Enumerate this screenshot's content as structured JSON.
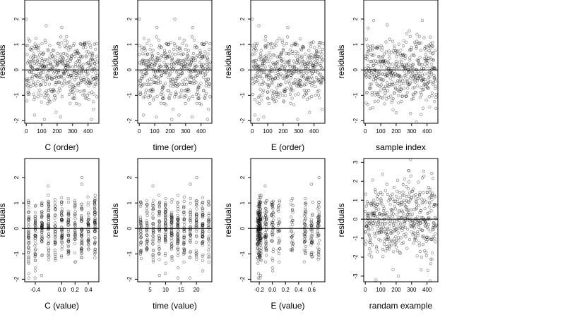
{
  "chart_data": [
    {
      "type": "scatter",
      "xlabel": "C (order)",
      "ylabel": "residuals",
      "xticks": [
        "0",
        "100",
        "200",
        "300",
        "400"
      ],
      "yticks": [
        "-2",
        "-1",
        "0",
        "1",
        "2"
      ],
      "xlim": [
        -10,
        470
      ],
      "ylim": [
        -2.1,
        2.75
      ],
      "x_kind": "index",
      "n_points": 460,
      "y_stats": {
        "spread": 0.72
      },
      "reference_line": 0
    },
    {
      "type": "scatter",
      "xlabel": "time (order)",
      "ylabel": "residuals",
      "xticks": [
        "0",
        "100",
        "200",
        "300",
        "400"
      ],
      "yticks": [
        "-2",
        "-1",
        "0",
        "1",
        "2"
      ],
      "xlim": [
        -10,
        470
      ],
      "ylim": [
        -2.1,
        2.75
      ],
      "x_kind": "index",
      "n_points": 460,
      "y_stats": {
        "spread": 0.72
      },
      "reference_line": 0
    },
    {
      "type": "scatter",
      "xlabel": "E (order)",
      "ylabel": "residuals",
      "xticks": [
        "0",
        "100",
        "200",
        "300",
        "400"
      ],
      "yticks": [
        "-2",
        "-1",
        "0",
        "1",
        "2"
      ],
      "xlim": [
        -10,
        470
      ],
      "ylim": [
        -2.1,
        2.75
      ],
      "x_kind": "index",
      "n_points": 460,
      "y_stats": {
        "spread": 0.72
      },
      "reference_line": 0
    },
    {
      "type": "scatter",
      "xlabel": "sample index",
      "ylabel": "residuals",
      "xticks": [
        "0",
        "100",
        "200",
        "300",
        "400"
      ],
      "yticks": [
        "-2",
        "-1",
        "0",
        "1",
        "2"
      ],
      "xlim": [
        -10,
        470
      ],
      "ylim": [
        -2.1,
        2.75
      ],
      "x_kind": "index",
      "n_points": 460,
      "y_stats": {
        "spread": 0.72
      },
      "reference_line": 0
    },
    {
      "type": "scatter",
      "xlabel": "C (value)",
      "ylabel": "residuals",
      "xticks": [
        "-0.4",
        "0.0",
        "0.2",
        "0.4"
      ],
      "xtick_values": [
        -0.4,
        0.0,
        0.2,
        0.4
      ],
      "yticks": [
        "-2",
        "-1",
        "0",
        "1",
        "2"
      ],
      "xlim": [
        -0.56,
        0.56
      ],
      "ylim": [
        -2.1,
        2.75
      ],
      "x_kind": "discrete",
      "x_levels": [
        -0.5,
        -0.4,
        -0.3,
        -0.2,
        -0.1,
        0.0,
        0.1,
        0.2,
        0.3,
        0.4,
        0.5
      ],
      "n_points": 460,
      "y_stats": {
        "spread": 0.72
      },
      "reference_line": 0
    },
    {
      "type": "scatter",
      "xlabel": "time (value)",
      "ylabel": "residuals",
      "xticks": [
        "5",
        "10",
        "15",
        "20"
      ],
      "xtick_values": [
        5,
        10,
        15,
        20
      ],
      "yticks": [
        "-2",
        "-1",
        "0",
        "1",
        "2"
      ],
      "xlim": [
        1,
        25
      ],
      "ylim": [
        -2.1,
        2.75
      ],
      "x_kind": "discrete",
      "x_levels": [
        2,
        4,
        6,
        8,
        10,
        12,
        14,
        16,
        18,
        20,
        22,
        24
      ],
      "n_points": 460,
      "y_stats": {
        "spread": 0.72
      },
      "reference_line": 0
    },
    {
      "type": "scatter",
      "xlabel": "E (value)",
      "ylabel": "residuals",
      "xticks": [
        "-0.2",
        "0.0",
        "0.2",
        "0.4",
        "0.6"
      ],
      "xtick_values": [
        -0.2,
        0.0,
        0.2,
        0.4,
        0.6
      ],
      "yticks": [
        "-2",
        "-1",
        "0",
        "1",
        "2"
      ],
      "xlim": [
        -0.33,
        0.8
      ],
      "ylim": [
        -2.1,
        2.75
      ],
      "x_kind": "skewed",
      "x_levels": [
        -0.22,
        -0.2,
        -0.18,
        -0.1,
        0.0,
        0.1,
        0.3,
        0.5,
        0.6,
        0.7
      ],
      "n_points": 460,
      "y_stats": {
        "spread": 0.72
      },
      "reference_line": 0
    },
    {
      "type": "scatter",
      "xlabel": "randam example",
      "ylabel": "residuals",
      "xticks": [
        "0",
        "100",
        "200",
        "300",
        "400"
      ],
      "yticks": [
        "-3",
        "-2",
        "-1",
        "0",
        "1",
        "2",
        "3"
      ],
      "xlim": [
        -10,
        470
      ],
      "ylim": [
        -3.3,
        3.2
      ],
      "x_kind": "index",
      "n_points": 460,
      "y_stats": {
        "spread": 1.0
      },
      "reference_line": 0
    }
  ]
}
